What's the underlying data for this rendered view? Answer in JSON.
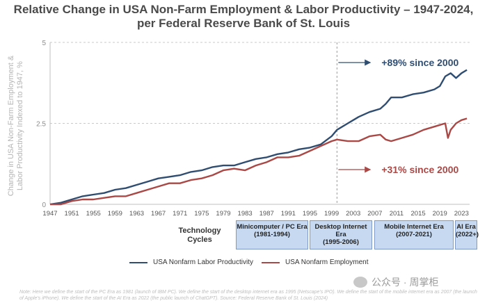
{
  "title_line1": "Relative Change in USA Non-Farm Employment & Labor Productivity – 1947-2024,",
  "title_line2": "per Federal Reserve Bank of St. Louis",
  "chart_data": {
    "type": "line",
    "ylabel": "Change in USA Non-Farm Employment & Labor Productivity Indexed to 1947, %",
    "ylim": [
      0,
      5
    ],
    "yticks": [
      "0",
      "2.5",
      "5"
    ],
    "xlim": [
      1947,
      2024.5
    ],
    "xticks": [
      "1947",
      "1951",
      "1955",
      "1959",
      "1963",
      "1967",
      "1971",
      "1975",
      "1979",
      "1983",
      "1987",
      "1991",
      "1995",
      "1999",
      "2003",
      "2007",
      "2011",
      "2015",
      "2019",
      "2023"
    ],
    "grid": "horizontal dashed",
    "reference_line_x": 2000,
    "series": [
      {
        "name": "USA Nonfarm Labor Productivity",
        "color": "#2f4d70",
        "x": [
          1947,
          1949,
          1951,
          1953,
          1955,
          1957,
          1959,
          1961,
          1963,
          1965,
          1967,
          1969,
          1971,
          1973,
          1975,
          1977,
          1979,
          1981,
          1983,
          1985,
          1987,
          1989,
          1991,
          1993,
          1995,
          1997,
          1999,
          2000,
          2002,
          2004,
          2006,
          2008,
          2009,
          2010,
          2012,
          2014,
          2016,
          2018,
          2019,
          2020,
          2021,
          2022,
          2023,
          2024
        ],
        "values": [
          0.0,
          0.05,
          0.15,
          0.25,
          0.3,
          0.35,
          0.45,
          0.5,
          0.6,
          0.7,
          0.8,
          0.85,
          0.9,
          1.0,
          1.05,
          1.15,
          1.2,
          1.2,
          1.3,
          1.4,
          1.45,
          1.55,
          1.6,
          1.7,
          1.75,
          1.85,
          2.1,
          2.3,
          2.5,
          2.7,
          2.85,
          2.95,
          3.1,
          3.3,
          3.3,
          3.4,
          3.45,
          3.55,
          3.65,
          3.95,
          4.05,
          3.9,
          4.05,
          4.15
        ]
      },
      {
        "name": "USA Nonfarm Employment",
        "color": "#a94845",
        "x": [
          1947,
          1949,
          1951,
          1953,
          1955,
          1957,
          1959,
          1961,
          1963,
          1965,
          1967,
          1969,
          1971,
          1973,
          1975,
          1977,
          1979,
          1981,
          1983,
          1985,
          1987,
          1989,
          1991,
          1993,
          1995,
          1997,
          1999,
          2000,
          2002,
          2004,
          2006,
          2008,
          2009,
          2010,
          2012,
          2014,
          2016,
          2018,
          2019,
          2020,
          2020.5,
          2021,
          2022,
          2023,
          2024
        ],
        "values": [
          0.0,
          0.0,
          0.1,
          0.15,
          0.15,
          0.2,
          0.25,
          0.25,
          0.35,
          0.45,
          0.55,
          0.65,
          0.65,
          0.75,
          0.8,
          0.9,
          1.05,
          1.1,
          1.05,
          1.2,
          1.3,
          1.45,
          1.45,
          1.5,
          1.65,
          1.8,
          1.95,
          2.0,
          1.95,
          1.95,
          2.1,
          2.15,
          2.0,
          1.95,
          2.05,
          2.15,
          2.3,
          2.4,
          2.45,
          2.5,
          2.05,
          2.3,
          2.5,
          2.6,
          2.65
        ]
      }
    ],
    "annotations": [
      {
        "text": "+89% since 2000",
        "color": "#2f4d70"
      },
      {
        "text": "+31% since 2000",
        "color": "#a94845"
      }
    ]
  },
  "tech_cycles": {
    "label": "Technology Cycles",
    "eras": [
      {
        "name": "Minicomputer / PC Era",
        "years": "(1981-1994)"
      },
      {
        "name": "Desktop Internet Era",
        "years": "(1995-2006)"
      },
      {
        "name": "Mobile Internet Era",
        "years": "(2007-2021)"
      },
      {
        "name": "AI Era",
        "years": "(2022+)"
      }
    ]
  },
  "note": "Note: Here we define the start of the PC Era as 1981 (launch of IBM PC). We define the start of the desktop internet era as 1995 (Netscape's IPO). We define the start of the mobile internet era as 2007 (the launch of Apple's iPhone). We define the start of the AI Era as 2022 (the public launch of ChatGPT). Source: Federal Reserve Bank of St. Louis (2024)",
  "watermark": "公众号 · 周掌柜"
}
